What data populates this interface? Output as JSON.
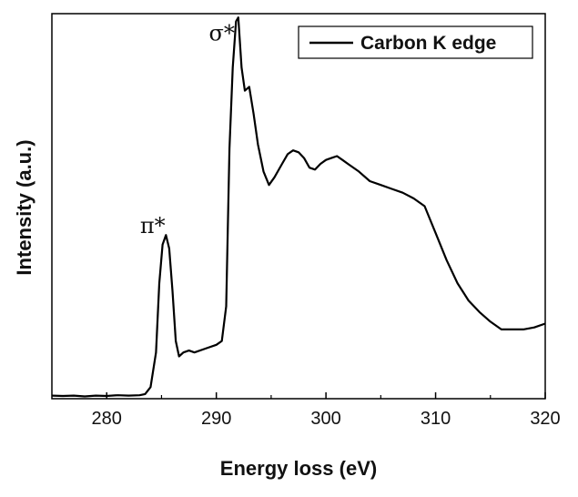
{
  "chart_data": {
    "type": "line",
    "xlabel": "Energy loss (eV)",
    "ylabel": "Intensity (a.u.)",
    "xlim": [
      275,
      320
    ],
    "ylim": [
      0,
      1.0
    ],
    "x_ticks": [
      280,
      290,
      300,
      310,
      320
    ],
    "y_ticks_labeled": false,
    "legend": {
      "placement": "top-right",
      "entries": [
        "Carbon K edge"
      ]
    },
    "annotations": [
      {
        "text": "π*",
        "x": 284.2,
        "y": 0.43
      },
      {
        "text": "σ*",
        "x": 290.5,
        "y": 0.93
      }
    ],
    "series": [
      {
        "name": "Carbon K edge",
        "color": "#000000",
        "x": [
          275,
          276,
          277,
          278,
          279,
          280,
          281,
          282,
          283,
          283.5,
          284,
          284.5,
          284.8,
          285.1,
          285.4,
          285.7,
          286,
          286.3,
          286.6,
          287,
          287.5,
          288,
          289,
          290,
          290.5,
          290.9,
          291.2,
          291.5,
          291.8,
          292,
          292.3,
          292.6,
          293,
          293.4,
          293.8,
          294.3,
          294.8,
          295.3,
          296,
          296.5,
          297,
          297.5,
          298,
          298.5,
          299,
          299.5,
          300,
          300.5,
          301,
          301.5,
          302,
          303,
          304,
          305,
          306,
          307,
          308,
          309,
          310,
          311,
          312,
          313,
          314,
          315,
          316,
          317,
          318,
          319,
          320
        ],
        "y": [
          0.008,
          0.007,
          0.008,
          0.006,
          0.008,
          0.007,
          0.009,
          0.008,
          0.009,
          0.012,
          0.03,
          0.12,
          0.3,
          0.4,
          0.425,
          0.39,
          0.28,
          0.15,
          0.11,
          0.12,
          0.125,
          0.12,
          0.13,
          0.14,
          0.15,
          0.24,
          0.65,
          0.86,
          0.98,
          0.99,
          0.86,
          0.8,
          0.81,
          0.74,
          0.66,
          0.59,
          0.555,
          0.575,
          0.61,
          0.635,
          0.645,
          0.64,
          0.625,
          0.6,
          0.595,
          0.61,
          0.62,
          0.625,
          0.63,
          0.62,
          0.61,
          0.59,
          0.565,
          0.555,
          0.545,
          0.535,
          0.52,
          0.5,
          0.43,
          0.36,
          0.3,
          0.255,
          0.225,
          0.2,
          0.18,
          0.18,
          0.18,
          0.185,
          0.195
        ]
      }
    ]
  }
}
